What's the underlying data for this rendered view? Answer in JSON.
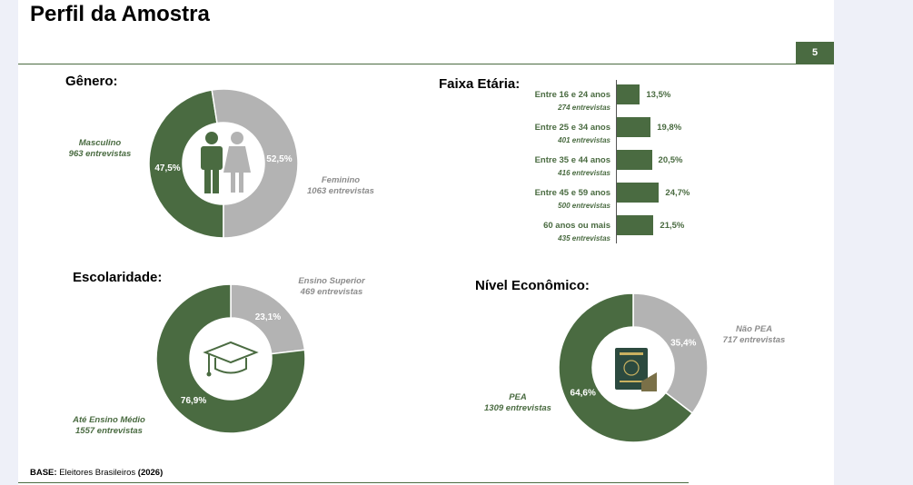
{
  "page": {
    "title": "Perfil da Amostra",
    "page_number": "5"
  },
  "colors": {
    "green": "#4a6b41",
    "gray": "#b3b3b3",
    "white": "#ffffff"
  },
  "sections": {
    "genero": {
      "title": "Gênero:",
      "icon": "man-woman-icon",
      "segments": [
        {
          "name": "Masculino",
          "count_label": "963 entrevistas",
          "pct_label": "47,5%",
          "value": 47.5,
          "color": "#4a6b41"
        },
        {
          "name": "Feminino",
          "count_label": "1063 entrevistas",
          "pct_label": "52,5%",
          "value": 52.5,
          "color": "#b3b3b3"
        }
      ]
    },
    "escolaridade": {
      "title": "Escolaridade:",
      "icon": "graduation-cap-icon",
      "segments": [
        {
          "name": "Ensino Superior",
          "count_label": "469 entrevistas",
          "pct_label": "23,1%",
          "value": 23.1,
          "color": "#b3b3b3"
        },
        {
          "name": "Até Ensino Médio",
          "count_label": "1557 entrevistas",
          "pct_label": "76,9%",
          "value": 76.9,
          "color": "#4a6b41"
        }
      ]
    },
    "nivel": {
      "title": "Nível Econômico:",
      "icon": "work-card-icon",
      "segments": [
        {
          "name": "Não PEA",
          "count_label": "717 entrevistas",
          "pct_label": "35,4%",
          "value": 35.4,
          "color": "#b3b3b3"
        },
        {
          "name": "PEA",
          "count_label": "1309 entrevistas",
          "pct_label": "64,6%",
          "value": 64.6,
          "color": "#4a6b41"
        }
      ]
    },
    "faixa": {
      "title": "Faixa Etária:",
      "bars": [
        {
          "category": "Entre 16 e 24 anos",
          "count_label": "274 entrevistas",
          "pct_label": "13,5%",
          "value": 13.5
        },
        {
          "category": "Entre 25 e 34 anos",
          "count_label": "401 entrevistas",
          "pct_label": "19,8%",
          "value": 19.8
        },
        {
          "category": "Entre 35 e 44 anos",
          "count_label": "416 entrevistas",
          "pct_label": "20,5%",
          "value": 20.5
        },
        {
          "category": "Entre 45 e 59 anos",
          "count_label": "500 entrevistas",
          "pct_label": "24,7%",
          "value": 24.7
        },
        {
          "category": "60 anos ou mais",
          "count_label": "435 entrevistas",
          "pct_label": "21,5%",
          "value": 21.5
        }
      ]
    }
  },
  "footer": {
    "base_label": "BASE:",
    "base_text": " Eleitores Brasileiros ",
    "base_year": "(2026)"
  },
  "chart_data": [
    {
      "type": "pie",
      "title": "Gênero:",
      "categories": [
        "Masculino",
        "Feminino"
      ],
      "values": [
        47.5,
        52.5
      ]
    },
    {
      "type": "bar",
      "title": "Faixa Etária:",
      "categories": [
        "Entre 16 e 24 anos",
        "Entre 25 e 34 anos",
        "Entre 35 e 44 anos",
        "Entre 45 e 59 anos",
        "60 anos ou mais"
      ],
      "values": [
        13.5,
        19.8,
        20.5,
        24.7,
        21.5
      ]
    },
    {
      "type": "pie",
      "title": "Escolaridade:",
      "categories": [
        "Ensino Superior",
        "Até Ensino Médio"
      ],
      "values": [
        23.1,
        76.9
      ]
    },
    {
      "type": "pie",
      "title": "Nível Econômico:",
      "categories": [
        "Não PEA",
        "PEA"
      ],
      "values": [
        35.4,
        64.6
      ]
    }
  ]
}
